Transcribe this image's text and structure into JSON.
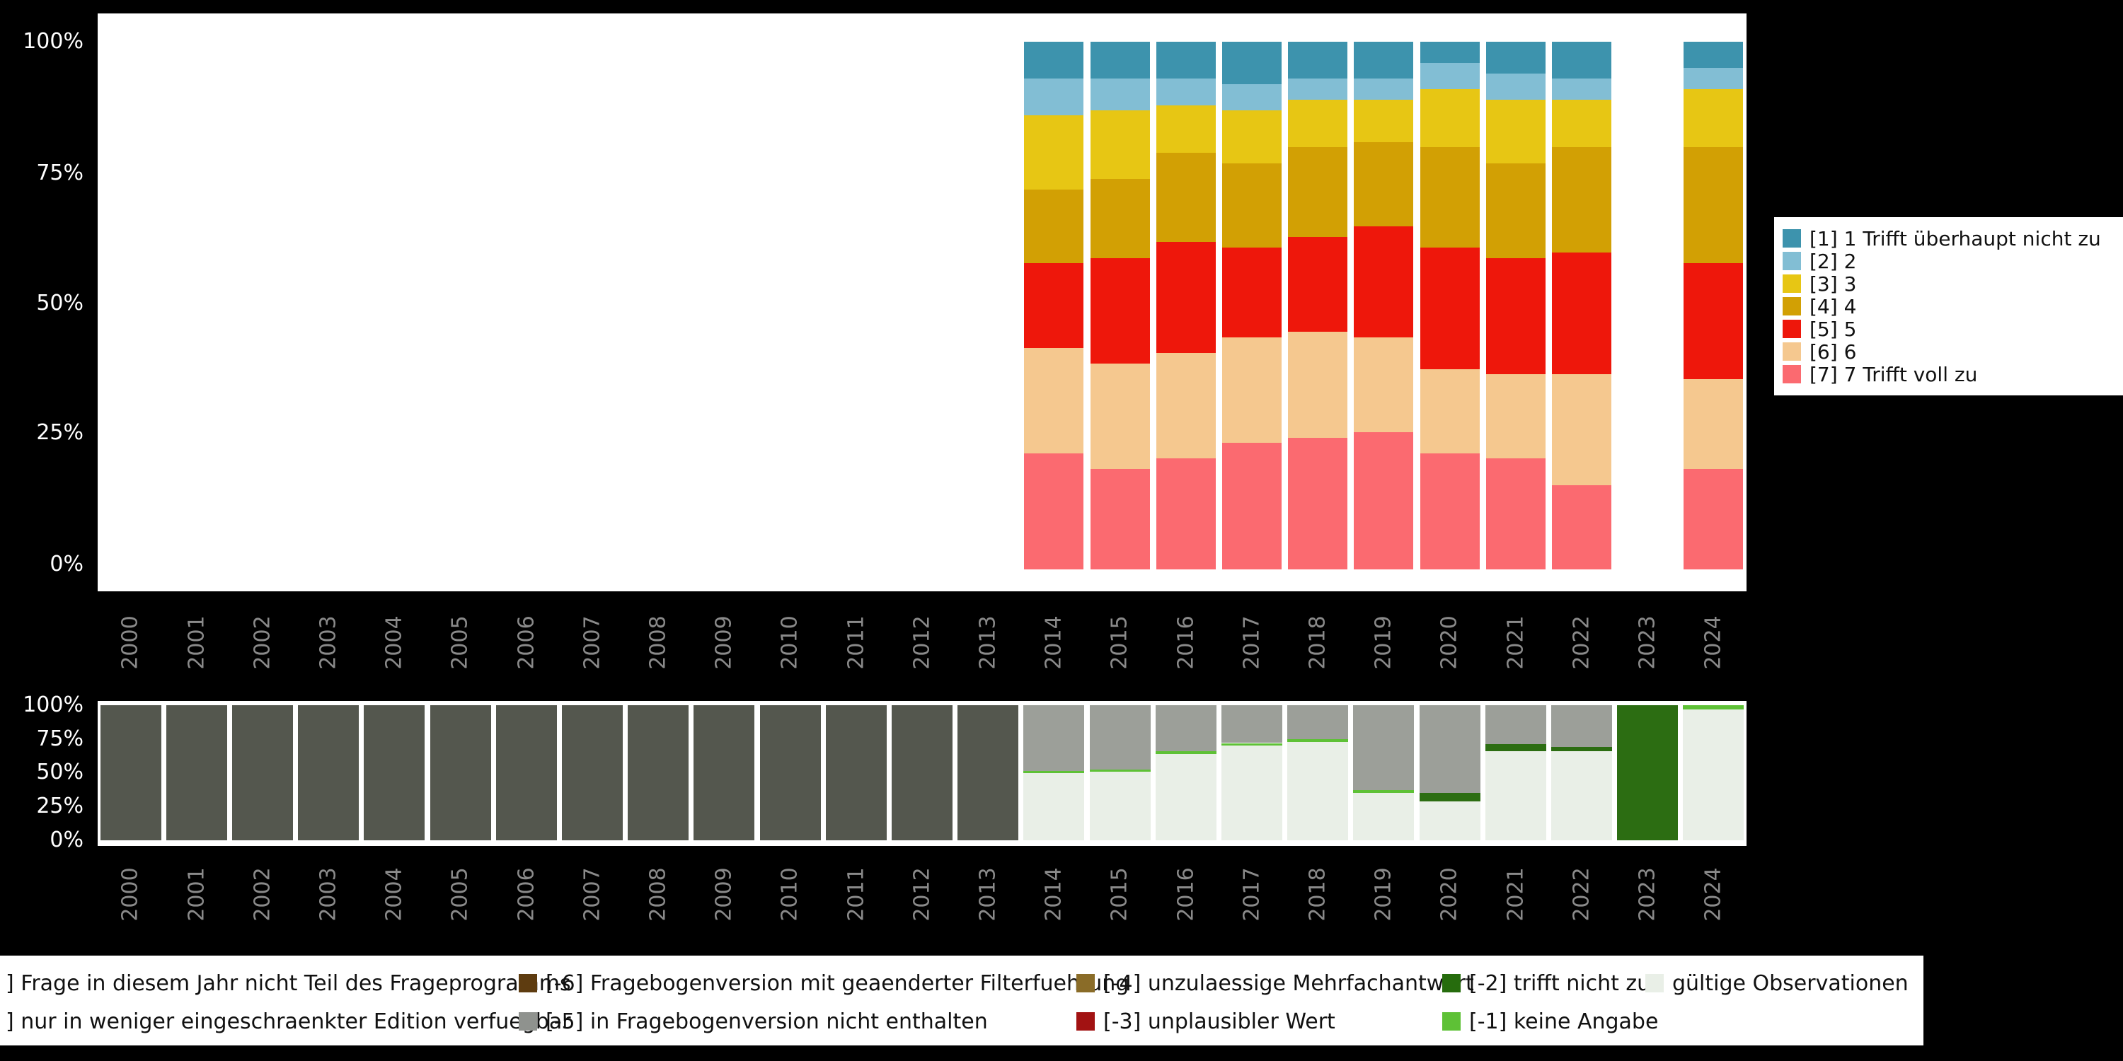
{
  "background_color": "#000000",
  "chart_data": [
    {
      "name": "answer-distribution-by-year",
      "type": "bar",
      "stacked": true,
      "orientation": "vertical",
      "ylim": [
        0,
        100
      ],
      "y_tick_labels": [
        "100%",
        "75%",
        "50%",
        "25%",
        "0%"
      ],
      "x_tick_color": "#8a8a8a",
      "y_tick_color": "#ffffff",
      "categories": [
        "2000",
        "2001",
        "2002",
        "2003",
        "2004",
        "2005",
        "2006",
        "2007",
        "2008",
        "2009",
        "2010",
        "2011",
        "2012",
        "2013",
        "2014",
        "2015",
        "2016",
        "2017",
        "2018",
        "2019",
        "2020",
        "2021",
        "2022",
        "2023",
        "2024"
      ],
      "legend_position": "right",
      "legend": [
        {
          "code": "1",
          "label": "[1] 1 Trifft überhaupt nicht zu",
          "color": "#3d93ad"
        },
        {
          "code": "2",
          "label": "[2] 2",
          "color": "#82bed4"
        },
        {
          "code": "3",
          "label": "[3] 3",
          "color": "#e7c614"
        },
        {
          "code": "4",
          "label": "[4] 4",
          "color": "#d2a004"
        },
        {
          "code": "5",
          "label": "[5] 5",
          "color": "#ee170b"
        },
        {
          "code": "6",
          "label": "[6] 6",
          "color": "#f5c88f"
        },
        {
          "code": "7",
          "label": "[7] 7 Trifft voll zu",
          "color": "#fb6a70"
        }
      ],
      "stack_order_bottom_to_top": [
        "7",
        "6",
        "5",
        "4",
        "3",
        "2",
        "1"
      ],
      "bars": {
        "2014": [
          22,
          20,
          16,
          14,
          14,
          7,
          7
        ],
        "2015": [
          19,
          20,
          20,
          15,
          13,
          6,
          7
        ],
        "2016": [
          21,
          20,
          21,
          17,
          9,
          5,
          7
        ],
        "2017": [
          24,
          20,
          17,
          16,
          10,
          5,
          8
        ],
        "2018": [
          25,
          20,
          18,
          17,
          9,
          4,
          7
        ],
        "2019": [
          26,
          18,
          21,
          16,
          8,
          4,
          7
        ],
        "2020": [
          22,
          16,
          23,
          19,
          11,
          5,
          4
        ],
        "2021": [
          21,
          16,
          22,
          18,
          12,
          5,
          6
        ],
        "2022": [
          16,
          21,
          23,
          20,
          9,
          4,
          7
        ],
        "2024": [
          19,
          17,
          22,
          22,
          11,
          4,
          5
        ]
      }
    },
    {
      "name": "missing-values-by-year",
      "type": "bar",
      "stacked": true,
      "orientation": "vertical",
      "ylim": [
        0,
        100
      ],
      "y_tick_labels": [
        "100%",
        "75%",
        "50%",
        "25%",
        "0%"
      ],
      "x_tick_color": "#8a8a8a",
      "y_tick_color": "#ffffff",
      "categories": [
        "2000",
        "2001",
        "2002",
        "2003",
        "2004",
        "2005",
        "2006",
        "2007",
        "2008",
        "2009",
        "2010",
        "2011",
        "2012",
        "2013",
        "2014",
        "2015",
        "2016",
        "2017",
        "2018",
        "2019",
        "2020",
        "2021",
        "2022",
        "2023",
        "2024"
      ],
      "colors": {
        "nicht_teil": "#54574e",
        "nicht_enthalten": "#9c9f99",
        "keine_angabe": "#5ec136",
        "trifft_nicht_zu": "#2c6d12",
        "gueltig": "#e9efe7"
      },
      "bars": {
        "2000": [
          [
            "nicht_teil",
            100
          ]
        ],
        "2001": [
          [
            "nicht_teil",
            100
          ]
        ],
        "2002": [
          [
            "nicht_teil",
            100
          ]
        ],
        "2003": [
          [
            "nicht_teil",
            100
          ]
        ],
        "2004": [
          [
            "nicht_teil",
            100
          ]
        ],
        "2005": [
          [
            "nicht_teil",
            100
          ]
        ],
        "2006": [
          [
            "nicht_teil",
            100
          ]
        ],
        "2007": [
          [
            "nicht_teil",
            100
          ]
        ],
        "2008": [
          [
            "nicht_teil",
            100
          ]
        ],
        "2009": [
          [
            "nicht_teil",
            100
          ]
        ],
        "2010": [
          [
            "nicht_teil",
            100
          ]
        ],
        "2011": [
          [
            "nicht_teil",
            100
          ]
        ],
        "2012": [
          [
            "nicht_teil",
            100
          ]
        ],
        "2013": [
          [
            "nicht_teil",
            100
          ]
        ],
        "2014": [
          [
            "gueltig",
            50
          ],
          [
            "keine_angabe",
            1.5
          ],
          [
            "nicht_enthalten",
            48.5
          ]
        ],
        "2015": [
          [
            "gueltig",
            51
          ],
          [
            "keine_angabe",
            1.5
          ],
          [
            "nicht_enthalten",
            47.5
          ]
        ],
        "2016": [
          [
            "gueltig",
            64
          ],
          [
            "keine_angabe",
            2
          ],
          [
            "nicht_enthalten",
            34
          ]
        ],
        "2017": [
          [
            "gueltig",
            70
          ],
          [
            "keine_angabe",
            2
          ],
          [
            "nicht_enthalten",
            28
          ]
        ],
        "2018": [
          [
            "gueltig",
            73
          ],
          [
            "keine_angabe",
            2
          ],
          [
            "nicht_enthalten",
            25
          ]
        ],
        "2019": [
          [
            "gueltig",
            35
          ],
          [
            "keine_angabe",
            2
          ],
          [
            "nicht_enthalten",
            63
          ]
        ],
        "2020": [
          [
            "gueltig",
            29
          ],
          [
            "trifft_nicht_zu",
            6
          ],
          [
            "nicht_enthalten",
            65
          ]
        ],
        "2021": [
          [
            "gueltig",
            66
          ],
          [
            "trifft_nicht_zu",
            5
          ],
          [
            "nicht_enthalten",
            29
          ]
        ],
        "2022": [
          [
            "gueltig",
            66
          ],
          [
            "trifft_nicht_zu",
            3
          ],
          [
            "nicht_enthalten",
            31
          ]
        ],
        "2023": [
          [
            "trifft_nicht_zu",
            100
          ]
        ],
        "2024": [
          [
            "gueltig",
            97
          ],
          [
            "keine_angabe",
            3
          ]
        ]
      }
    }
  ],
  "missing_legend": {
    "rows": [
      [
        {
          "label": "] Frage in diesem Jahr nicht Teil des Frageprogramms",
          "color": null
        },
        {
          "label": "[-6] Fragebogenversion mit geaenderter Filterfuehrung",
          "color": "#5e3c10"
        },
        {
          "label": "[-4] unzulaessige Mehrfachantwort",
          "color": "#8a6c28"
        },
        {
          "label": "[-2] trifft nicht zu",
          "color": "#266c0d"
        },
        {
          "label": "gültige Observationen",
          "color": "#e9efe7"
        }
      ],
      [
        {
          "label": "] nur in weniger eingeschraenkter Edition verfuegbar",
          "color": null
        },
        {
          "label": "[-5] in Fragebogenversion nicht enthalten",
          "color": "#8f928e"
        },
        {
          "label": "[-3] unplausibler Wert",
          "color": "#a21212"
        },
        {
          "label": "[-1] keine Angabe",
          "color": "#5ec136"
        }
      ]
    ]
  }
}
